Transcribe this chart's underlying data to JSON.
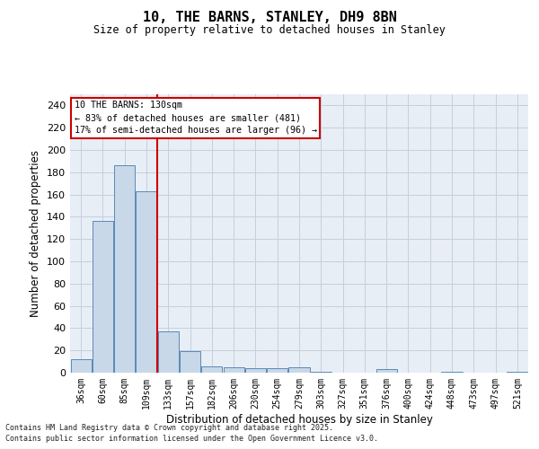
{
  "title_line1": "10, THE BARNS, STANLEY, DH9 8BN",
  "title_line2": "Size of property relative to detached houses in Stanley",
  "xlabel": "Distribution of detached houses by size in Stanley",
  "ylabel": "Number of detached properties",
  "categories": [
    "36sqm",
    "60sqm",
    "85sqm",
    "109sqm",
    "133sqm",
    "157sqm",
    "182sqm",
    "206sqm",
    "230sqm",
    "254sqm",
    "279sqm",
    "303sqm",
    "327sqm",
    "351sqm",
    "376sqm",
    "400sqm",
    "424sqm",
    "448sqm",
    "473sqm",
    "497sqm",
    "521sqm"
  ],
  "values": [
    12,
    136,
    186,
    163,
    37,
    19,
    6,
    5,
    4,
    4,
    5,
    1,
    0,
    0,
    3,
    0,
    0,
    1,
    0,
    0,
    1
  ],
  "bar_color": "#c8d8e8",
  "bar_edge_color": "#5a8ab8",
  "vline_color": "#cc0000",
  "vline_x": 3.5,
  "ylim_max": 250,
  "yticks": [
    0,
    20,
    40,
    60,
    80,
    100,
    120,
    140,
    160,
    180,
    200,
    220,
    240
  ],
  "annotation_title": "10 THE BARNS: 130sqm",
  "annotation_line1": "← 83% of detached houses are smaller (481)",
  "annotation_line2": "17% of semi-detached houses are larger (96) →",
  "annotation_box_edgecolor": "#cc0000",
  "annotation_box_facecolor": "#ffffff",
  "grid_color": "#c5cfe0",
  "bg_color": "#e8eef5",
  "footer_line1": "Contains HM Land Registry data © Crown copyright and database right 2025.",
  "footer_line2": "Contains public sector information licensed under the Open Government Licence v3.0.",
  "fig_width": 6.0,
  "fig_height": 5.0,
  "dpi": 100
}
